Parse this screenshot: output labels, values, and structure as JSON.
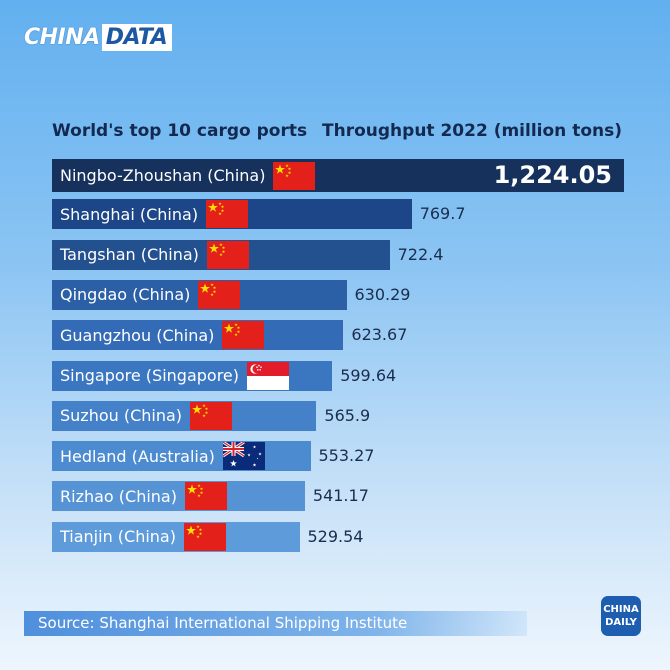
{
  "brand": {
    "part1": "CHINA",
    "part2": "DATA"
  },
  "header": {
    "left": "World's top 10 cargo ports",
    "right": "Throughput 2022 (million tons)"
  },
  "chart_data": {
    "type": "bar",
    "orientation": "horizontal",
    "categories": [
      "Ningbo-Zhoushan (China)",
      "Shanghai (China)",
      "Tangshan (China)",
      "Qingdao (China)",
      "Guangzhou (China)",
      "Singapore (Singapore)",
      "Suzhou (China)",
      "Hedland (Australia)",
      "Rizhao (China)",
      "Tianjin (China)"
    ],
    "values": [
      1224.05,
      769.7,
      722.4,
      630.29,
      623.67,
      599.64,
      565.9,
      553.27,
      541.17,
      529.54
    ],
    "value_labels": [
      "1,224.05",
      "769.7",
      "722.4",
      "630.29",
      "623.67",
      "599.64",
      "565.9",
      "553.27",
      "541.17",
      "529.54"
    ],
    "flags": [
      "china",
      "china",
      "china",
      "china",
      "china",
      "singapore",
      "china",
      "australia",
      "china",
      "china"
    ],
    "title": "World's top 10 cargo ports",
    "value_title": "Throughput 2022 (million tons)",
    "bar_colors": [
      "#15315c",
      "#1d4688",
      "#23508f",
      "#2b5fa6",
      "#336bb6",
      "#3b77c1",
      "#4481c9",
      "#4c8bd0",
      "#5593d5",
      "#5d9bda"
    ],
    "grid": false,
    "legend": "none"
  },
  "footer": {
    "source": "Source: Shanghai International Shipping Institute"
  },
  "logo": {
    "line1": "CHINA",
    "line2": "DAILY"
  }
}
